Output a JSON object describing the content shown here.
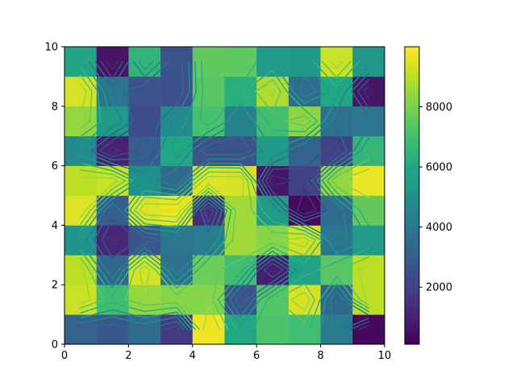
{
  "chart_data": {
    "type": "heatmap",
    "title": "",
    "xlabel": "",
    "ylabel": "",
    "xlim": [
      0,
      10
    ],
    "ylim": [
      0,
      10
    ],
    "x_ticks": [
      "0",
      "2",
      "4",
      "6",
      "8",
      "10"
    ],
    "y_ticks": [
      "0",
      "2",
      "4",
      "6",
      "8",
      "10"
    ],
    "colormap": "viridis",
    "color_range": [
      100,
      10000
    ],
    "colorbar_ticks": [
      "2000",
      "4000",
      "6000",
      "8000"
    ],
    "colorbar_tick_values": [
      2000,
      4000,
      6000,
      8000
    ],
    "grid": false,
    "row_order": "bottom-to-top",
    "values": [
      [
        3200,
        2800,
        3600,
        1800,
        9800,
        6000,
        7200,
        6900,
        4200,
        300
      ],
      [
        9200,
        6900,
        8400,
        8200,
        8200,
        2600,
        7300,
        9400,
        3400,
        9000
      ],
      [
        9000,
        3400,
        9400,
        3800,
        7800,
        6900,
        900,
        5800,
        7400,
        9000
      ],
      [
        5200,
        1200,
        2800,
        4000,
        4200,
        8600,
        8200,
        9300,
        4000,
        5500
      ],
      [
        9500,
        3000,
        9500,
        9700,
        1400,
        8600,
        5500,
        300,
        3600,
        7600
      ],
      [
        9000,
        9200,
        5000,
        3500,
        9500,
        9400,
        700,
        2000,
        8400,
        9700
      ],
      [
        4800,
        1000,
        3000,
        6000,
        2600,
        2600,
        5400,
        3200,
        2000,
        6600
      ],
      [
        8400,
        5400,
        2400,
        4800,
        7100,
        4400,
        7000,
        8300,
        3800,
        4000
      ],
      [
        9400,
        4000,
        2600,
        2500,
        7400,
        6300,
        8800,
        3600,
        6000,
        700
      ],
      [
        5900,
        600,
        6500,
        2600,
        7600,
        7500,
        5500,
        5400,
        9200,
        5300
      ]
    ]
  }
}
